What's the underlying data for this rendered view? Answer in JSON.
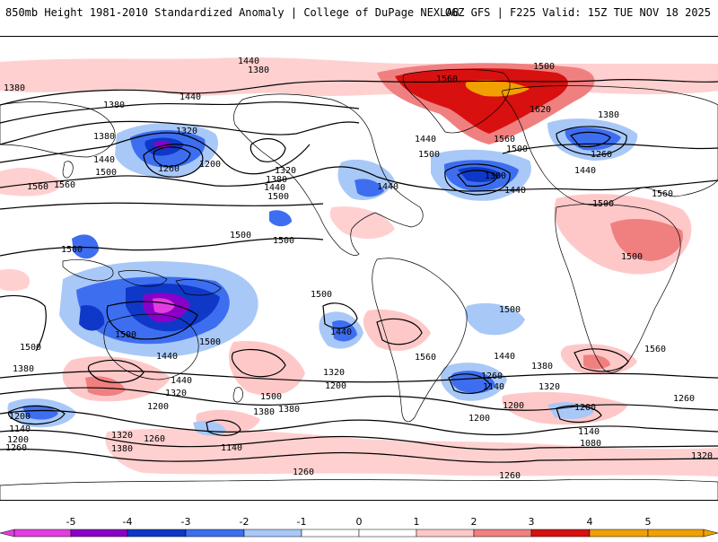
{
  "header": {
    "title": "850mb Height 1981-2010 Standardized Anomaly | College of DuPage NEXLAB",
    "run_info": "06Z GFS | F225 Valid: 15Z TUE NOV 18 2025"
  },
  "colorbar": {
    "ticks": [
      "-5",
      "-4",
      "-3",
      "-2",
      "-1",
      "0",
      "1",
      "2",
      "3",
      "4",
      "5"
    ],
    "colors": [
      "#e23de0",
      "#8a00c8",
      "#0f38c8",
      "#3d6ef0",
      "#a8c8f8",
      "#ffffff",
      "#ffffff",
      "#ffc8c8",
      "#f08080",
      "#d81010",
      "#f0a000"
    ]
  },
  "contour_labels": [
    {
      "text": "1440",
      "id": "c1"
    },
    {
      "text": "1380",
      "id": "c2"
    },
    {
      "text": "1380",
      "id": "c3"
    },
    {
      "text": "1440",
      "id": "c4"
    },
    {
      "text": "1380",
      "id": "c5"
    },
    {
      "text": "1320",
      "id": "c6"
    },
    {
      "text": "1380",
      "id": "c7"
    },
    {
      "text": "1440",
      "id": "c8"
    },
    {
      "text": "1500",
      "id": "c9"
    },
    {
      "text": "1260",
      "id": "c10"
    },
    {
      "text": "1200",
      "id": "c11"
    },
    {
      "text": "1560",
      "id": "c12"
    },
    {
      "text": "1320",
      "id": "c13"
    },
    {
      "text": "1380",
      "id": "c14"
    },
    {
      "text": "1440",
      "id": "c15"
    },
    {
      "text": "1500",
      "id": "c16"
    },
    {
      "text": "1500",
      "id": "c17"
    },
    {
      "text": "1440",
      "id": "c18"
    },
    {
      "text": "1500",
      "id": "c19"
    },
    {
      "text": "1560",
      "id": "c20"
    },
    {
      "text": "1620",
      "id": "c21"
    },
    {
      "text": "1560",
      "id": "c22"
    },
    {
      "text": "1500",
      "id": "c23"
    },
    {
      "text": "1380",
      "id": "c24"
    },
    {
      "text": "1440",
      "id": "c25"
    },
    {
      "text": "1440",
      "id": "c26"
    },
    {
      "text": "1500",
      "id": "c27"
    },
    {
      "text": "1380",
      "id": "c28"
    },
    {
      "text": "1440",
      "id": "c29"
    },
    {
      "text": "1260",
      "id": "c30"
    },
    {
      "text": "1500",
      "id": "c31"
    },
    {
      "text": "1560",
      "id": "c32"
    },
    {
      "text": "1500",
      "id": "c33"
    },
    {
      "text": "1500",
      "id": "c34"
    },
    {
      "text": "1500",
      "id": "c35"
    },
    {
      "text": "1500",
      "id": "c36"
    },
    {
      "text": "1440",
      "id": "c37"
    },
    {
      "text": "1500",
      "id": "c38"
    },
    {
      "text": "1440",
      "id": "c39"
    },
    {
      "text": "1560",
      "id": "c40"
    },
    {
      "text": "1500",
      "id": "c41"
    },
    {
      "text": "1560",
      "id": "c42"
    },
    {
      "text": "1500",
      "id": "c43"
    },
    {
      "text": "1380",
      "id": "c44"
    },
    {
      "text": "1440",
      "id": "c45"
    },
    {
      "text": "1320",
      "id": "c46"
    },
    {
      "text": "1200",
      "id": "c47"
    },
    {
      "text": "1500",
      "id": "c48"
    },
    {
      "text": "1380",
      "id": "c49"
    },
    {
      "text": "1320",
      "id": "c50"
    },
    {
      "text": "1200",
      "id": "c51"
    },
    {
      "text": "1260",
      "id": "c52"
    },
    {
      "text": "1140",
      "id": "c53"
    },
    {
      "text": "1200",
      "id": "c54"
    },
    {
      "text": "1440",
      "id": "c55"
    },
    {
      "text": "1380",
      "id": "c56"
    },
    {
      "text": "1320",
      "id": "c57"
    },
    {
      "text": "1260",
      "id": "c58"
    },
    {
      "text": "1200",
      "id": "c59"
    },
    {
      "text": "1140",
      "id": "c60"
    },
    {
      "text": "1080",
      "id": "c61"
    },
    {
      "text": "1200",
      "id": "c62"
    },
    {
      "text": "1320",
      "id": "c63"
    },
    {
      "text": "1140",
      "id": "c64"
    },
    {
      "text": "1200",
      "id": "c65"
    },
    {
      "text": "1260",
      "id": "c66"
    },
    {
      "text": "1320",
      "id": "c67"
    },
    {
      "text": "1380",
      "id": "c68"
    },
    {
      "text": "1260",
      "id": "c69"
    },
    {
      "text": "1140",
      "id": "c70"
    },
    {
      "text": "1260",
      "id": "c71"
    },
    {
      "text": "1260",
      "id": "c72"
    },
    {
      "text": "1200",
      "id": "c73"
    },
    {
      "text": "1500",
      "id": "c74"
    },
    {
      "text": "1560",
      "id": "c75"
    },
    {
      "text": "1380",
      "id": "c76"
    }
  ]
}
